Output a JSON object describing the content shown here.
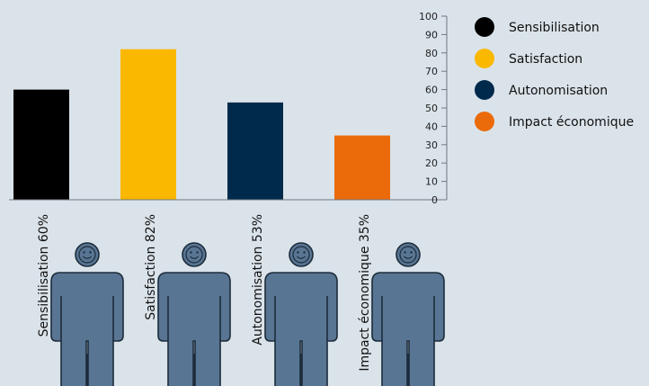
{
  "chart_data": {
    "type": "bar",
    "categories": [
      "Sensibilisation",
      "Satisfaction",
      "Autonomisation",
      "Impact économique"
    ],
    "values": [
      60,
      82,
      53,
      35
    ],
    "colors": [
      "#000000",
      "#fbb800",
      "#002a4c",
      "#eb6a0a"
    ],
    "category_labels": [
      "Sensibilisation 60%",
      "Satisfaction 82%",
      "Autonomisation 53%",
      "Impact économique 35%"
    ],
    "yticks": [
      "0",
      "10",
      "20",
      "30",
      "40",
      "50",
      "60",
      "70",
      "80",
      "90",
      "100"
    ],
    "ylim": [
      0,
      100
    ],
    "legend": {
      "placement": "right",
      "entries": [
        "Sensibilisation",
        "Satisfaction",
        "Autonomisation",
        "Impact économique"
      ]
    },
    "grid": false,
    "decoration": "smiling-person-icon"
  }
}
